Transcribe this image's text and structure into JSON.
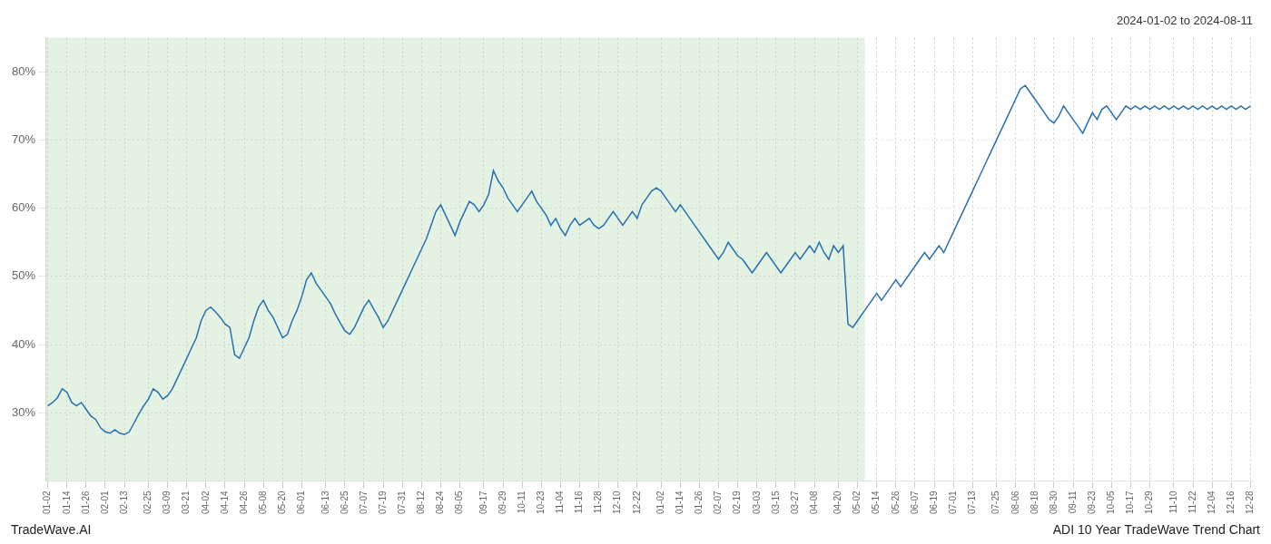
{
  "chart_data": {
    "type": "line",
    "title": "2024-01-02 to 2024-08-11",
    "color": "#2970b0",
    "grid": true,
    "ylim": [
      20,
      85
    ],
    "yticks": [
      {
        "value": 30,
        "label": "30%"
      },
      {
        "value": 40,
        "label": "40%"
      },
      {
        "value": 50,
        "label": "50%"
      },
      {
        "value": 60,
        "label": "60%"
      },
      {
        "value": 70,
        "label": "70%"
      },
      {
        "value": 80,
        "label": "80%"
      }
    ],
    "annotations": [
      {
        "type": "span",
        "start": 0,
        "end": 170,
        "color": "#c8e6c8"
      },
      {
        "type": "text",
        "text": "TradeWave.AI"
      },
      {
        "type": "text",
        "text": "ADI 10 Year TradeWave Trend Chart"
      }
    ],
    "categories": [
      "01-02",
      null,
      null,
      null,
      "01-14",
      null,
      null,
      null,
      "01-26",
      null,
      null,
      null,
      "02-01",
      null,
      null,
      null,
      "02-13",
      null,
      null,
      null,
      null,
      "02-25",
      null,
      null,
      null,
      "03-09",
      null,
      null,
      null,
      "03-21",
      null,
      null,
      null,
      "04-02",
      null,
      null,
      null,
      "04-14",
      null,
      null,
      null,
      "04-26",
      null,
      null,
      null,
      "05-08",
      null,
      null,
      null,
      "05-20",
      null,
      null,
      null,
      "06-01",
      null,
      null,
      null,
      null,
      "06-13",
      null,
      null,
      null,
      "06-25",
      null,
      null,
      null,
      "07-07",
      null,
      null,
      null,
      "07-19",
      null,
      null,
      null,
      "07-31",
      null,
      null,
      null,
      "08-12",
      null,
      null,
      null,
      "08-24",
      null,
      null,
      null,
      "09-05",
      null,
      null,
      null,
      null,
      "09-17",
      null,
      null,
      null,
      "09-29",
      null,
      null,
      null,
      "10-11",
      null,
      null,
      null,
      "10-23",
      null,
      null,
      null,
      "11-04",
      null,
      null,
      null,
      "11-16",
      null,
      null,
      null,
      "11-28",
      null,
      null,
      null,
      "12-10",
      null,
      null,
      null,
      "12-22",
      null,
      null,
      null,
      null,
      "01-02",
      null,
      null,
      null,
      "01-14",
      null,
      null,
      null,
      "01-26",
      null,
      null,
      null,
      "02-07",
      null,
      null,
      null,
      "02-19",
      null,
      null,
      null,
      "03-03",
      null,
      null,
      null,
      "03-15",
      null,
      null,
      null,
      "03-27",
      null,
      null,
      null,
      "04-08",
      null,
      null,
      null,
      null,
      "04-20",
      null,
      null,
      null,
      "05-02",
      null,
      null,
      null,
      "05-14",
      null,
      null,
      null,
      "05-26",
      null,
      null,
      null,
      "06-07",
      null,
      null,
      null,
      "06-19",
      null,
      null,
      null,
      "07-01",
      null,
      null,
      null,
      "07-13",
      null,
      null,
      null,
      null,
      "07-25",
      null,
      null,
      null,
      "08-06",
      null,
      null,
      null,
      "08-18",
      null,
      null,
      null,
      "08-30",
      null,
      null,
      null,
      "09-11",
      null,
      null,
      null,
      "09-23",
      null,
      null,
      null,
      "10-05",
      null,
      null,
      null,
      "10-17",
      null,
      null,
      null,
      "10-29",
      null,
      null,
      null,
      null,
      "11-10",
      null,
      null,
      null,
      "11-22",
      null,
      null,
      null,
      "12-04",
      null,
      null,
      null,
      "12-16",
      null,
      null,
      null,
      "12-28"
    ],
    "values": [
      31.0,
      31.5,
      32.2,
      33.5,
      33.0,
      31.5,
      31.0,
      31.5,
      30.5,
      29.5,
      29.0,
      27.8,
      27.2,
      27.0,
      27.5,
      27.0,
      26.8,
      27.2,
      28.5,
      29.8,
      31.0,
      32.0,
      33.5,
      33.0,
      32.0,
      32.5,
      33.5,
      35.0,
      36.5,
      38.0,
      39.5,
      41.0,
      43.5,
      45.0,
      45.5,
      44.8,
      44.0,
      43.0,
      42.5,
      38.5,
      38.0,
      39.5,
      41.0,
      43.5,
      45.5,
      46.5,
      45.0,
      44.0,
      42.5,
      41.0,
      41.5,
      43.5,
      45.0,
      47.0,
      49.5,
      50.5,
      49.0,
      48.0,
      47.0,
      46.0,
      44.5,
      43.2,
      42.0,
      41.5,
      42.5,
      44.0,
      45.5,
      46.5,
      45.2,
      44.0,
      42.5,
      43.5,
      45.0,
      46.5,
      48.0,
      49.5,
      51.0,
      52.5,
      54.0,
      55.5,
      57.5,
      59.5,
      60.5,
      59.0,
      57.5,
      56.0,
      58.0,
      59.5,
      61.0,
      60.5,
      59.5,
      60.5,
      62.0,
      65.5,
      64.0,
      63.0,
      61.5,
      60.5,
      59.5,
      60.5,
      61.5,
      62.5,
      61.0,
      60.0,
      59.0,
      57.5,
      58.5,
      57.0,
      56.0,
      57.5,
      58.5,
      57.5,
      58.0,
      58.5,
      57.5,
      57.0,
      57.5,
      58.5,
      59.5,
      58.5,
      57.5,
      58.5,
      59.5,
      58.5,
      60.5,
      61.5,
      62.5,
      63.0,
      62.5,
      61.5,
      60.5,
      59.5,
      60.5,
      59.5,
      58.5,
      57.5,
      56.5,
      55.5,
      54.5,
      53.5,
      52.5,
      53.5,
      55.0,
      54.0,
      53.0,
      52.5,
      51.5,
      50.5,
      51.5,
      52.5,
      53.5,
      52.5,
      51.5,
      50.5,
      51.5,
      52.5,
      53.5,
      52.5,
      53.5,
      54.5,
      53.5,
      55.0,
      53.5,
      52.5,
      54.5,
      53.5,
      54.5,
      43.0,
      42.5,
      43.5,
      44.5,
      45.5,
      46.5,
      47.5,
      46.5,
      47.5,
      48.5,
      49.5,
      48.5,
      49.5,
      50.5,
      51.5,
      52.5,
      53.5,
      52.5,
      53.5,
      54.5,
      53.5,
      55.0,
      56.5,
      58.0,
      59.5,
      61.0,
      62.5,
      64.0,
      65.5,
      67.0,
      68.5,
      70.0,
      71.5,
      73.0,
      74.5,
      76.0,
      77.5,
      78.0,
      77.0,
      76.0,
      75.0,
      74.0,
      73.0,
      72.5,
      73.5,
      75.0,
      74.0,
      73.0,
      72.0,
      71.0,
      72.5,
      74.0,
      73.0,
      74.5,
      75.0,
      74.0,
      73.0,
      74.0,
      75.0,
      74.5,
      75.0,
      74.5,
      75.0,
      74.5,
      75.0,
      74.5,
      75.0,
      74.5,
      75.0,
      74.5,
      75.0,
      74.5,
      75.0,
      74.5,
      75.0,
      74.5,
      75.0,
      74.5,
      75.0,
      74.5,
      75.0,
      74.5,
      75.0,
      74.5,
      75.0
    ]
  }
}
